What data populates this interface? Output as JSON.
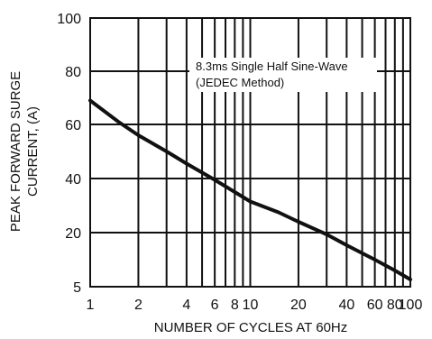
{
  "chart_data": {
    "type": "line",
    "xscale": "log",
    "xlim": [
      1,
      100
    ],
    "ylim": [
      5,
      100
    ],
    "grid": true,
    "xlabel": "NUMBER OF CYCLES AT 60Hz",
    "ylabel_lines": [
      "PEAK FORWARD SURGE",
      "CURRENT, (A)"
    ],
    "x_ticks": [
      1,
      2,
      4,
      6,
      8,
      10,
      20,
      40,
      60,
      80,
      100
    ],
    "x_tick_labels": [
      "1",
      "2",
      "4",
      "6",
      "8",
      "10",
      "20",
      "40",
      "60",
      "80",
      "100"
    ],
    "y_ticks": [
      5,
      20,
      40,
      60,
      80,
      100
    ],
    "y_tick_labels": [
      "5",
      "20",
      "40",
      "60",
      "80",
      "100"
    ],
    "annotation": [
      "8.3ms Single Half Sine-Wave",
      "(JEDEC Method)"
    ],
    "series": [
      {
        "color": "#111111",
        "x": [
          1,
          1.5,
          2,
          3,
          4,
          6,
          8,
          10,
          15,
          20,
          30,
          40,
          60,
          80,
          100
        ],
        "y": [
          69,
          61,
          56,
          50,
          45.5,
          39.5,
          35,
          31.5,
          27.5,
          24,
          19.5,
          16.5,
          12.5,
          9.5,
          7
        ]
      }
    ]
  }
}
